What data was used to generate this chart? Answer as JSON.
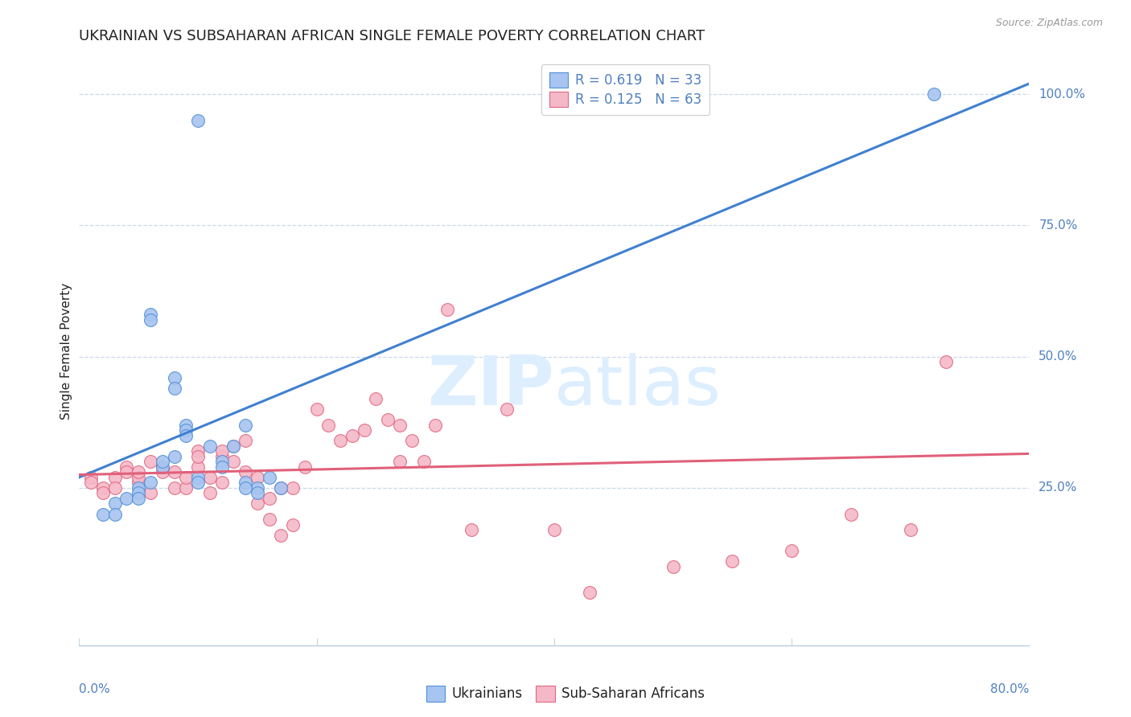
{
  "title": "UKRAINIAN VS SUBSAHARAN AFRICAN SINGLE FEMALE POVERTY CORRELATION CHART",
  "source": "Source: ZipAtlas.com",
  "ylabel": "Single Female Poverty",
  "right_yticks": [
    0.25,
    0.5,
    0.75,
    1.0
  ],
  "right_yticklabels": [
    "25.0%",
    "50.0%",
    "75.0%",
    "100.0%"
  ],
  "xlim": [
    0.0,
    0.8
  ],
  "ylim": [
    -0.05,
    1.07
  ],
  "blue_color": "#a8c4f0",
  "pink_color": "#f5b8c8",
  "blue_edge_color": "#5090d8",
  "pink_edge_color": "#e06880",
  "blue_line_color": "#4080d0",
  "pink_line_color": "#e0607a",
  "watermark_color": "#ddeeff",
  "legend_blue_label": "R = 0.619   N = 33",
  "legend_pink_label": "R = 0.125   N = 63",
  "blue_line_x": [
    0.0,
    0.8
  ],
  "blue_line_y": [
    0.27,
    1.02
  ],
  "pink_line_x": [
    0.0,
    0.8
  ],
  "pink_line_y": [
    0.275,
    0.315
  ],
  "grid_color": "#c8d8ec",
  "title_color": "#222222",
  "axis_color": "#5080c0",
  "title_fontsize": 13,
  "axis_label_fontsize": 11,
  "tick_fontsize": 11,
  "legend_fontsize": 12,
  "blue_scatter_x": [
    0.02,
    0.03,
    0.03,
    0.04,
    0.05,
    0.05,
    0.05,
    0.06,
    0.06,
    0.07,
    0.07,
    0.08,
    0.08,
    0.09,
    0.09,
    0.1,
    0.1,
    0.11,
    0.12,
    0.12,
    0.13,
    0.14,
    0.14,
    0.15,
    0.15,
    0.16,
    0.17,
    0.06,
    0.08,
    0.09,
    0.14,
    0.72,
    0.1
  ],
  "blue_scatter_y": [
    0.2,
    0.22,
    0.2,
    0.23,
    0.25,
    0.24,
    0.23,
    0.58,
    0.57,
    0.29,
    0.3,
    0.46,
    0.44,
    0.37,
    0.36,
    0.27,
    0.26,
    0.33,
    0.3,
    0.29,
    0.33,
    0.37,
    0.26,
    0.25,
    0.24,
    0.27,
    0.25,
    0.26,
    0.31,
    0.35,
    0.25,
    1.0,
    0.95
  ],
  "pink_scatter_x": [
    0.01,
    0.01,
    0.02,
    0.02,
    0.03,
    0.03,
    0.04,
    0.04,
    0.05,
    0.05,
    0.05,
    0.06,
    0.06,
    0.07,
    0.07,
    0.08,
    0.08,
    0.09,
    0.09,
    0.1,
    0.1,
    0.1,
    0.11,
    0.11,
    0.12,
    0.12,
    0.12,
    0.13,
    0.13,
    0.14,
    0.14,
    0.15,
    0.15,
    0.16,
    0.16,
    0.17,
    0.17,
    0.18,
    0.18,
    0.19,
    0.2,
    0.21,
    0.22,
    0.23,
    0.24,
    0.25,
    0.26,
    0.27,
    0.27,
    0.28,
    0.29,
    0.3,
    0.31,
    0.33,
    0.36,
    0.4,
    0.43,
    0.5,
    0.55,
    0.6,
    0.65,
    0.7,
    0.73
  ],
  "pink_scatter_y": [
    0.27,
    0.26,
    0.25,
    0.24,
    0.27,
    0.25,
    0.29,
    0.28,
    0.26,
    0.27,
    0.28,
    0.24,
    0.3,
    0.29,
    0.28,
    0.25,
    0.28,
    0.25,
    0.27,
    0.29,
    0.32,
    0.31,
    0.27,
    0.24,
    0.26,
    0.31,
    0.32,
    0.3,
    0.33,
    0.28,
    0.34,
    0.27,
    0.22,
    0.23,
    0.19,
    0.25,
    0.16,
    0.25,
    0.18,
    0.29,
    0.4,
    0.37,
    0.34,
    0.35,
    0.36,
    0.42,
    0.38,
    0.3,
    0.37,
    0.34,
    0.3,
    0.37,
    0.59,
    0.17,
    0.4,
    0.17,
    0.05,
    0.1,
    0.11,
    0.13,
    0.2,
    0.17,
    0.49
  ]
}
